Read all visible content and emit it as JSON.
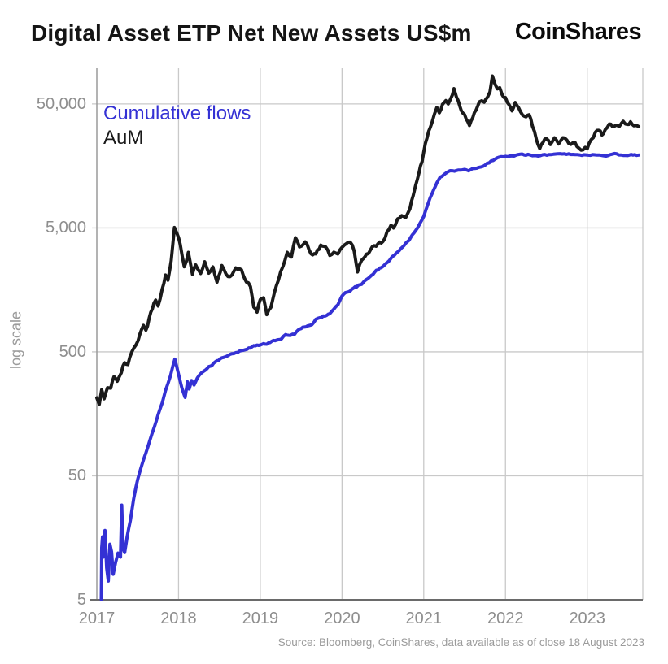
{
  "header": {
    "title": "Digital Asset ETP Net New Assets US$m",
    "brand": "CoinShares"
  },
  "legend": [
    {
      "label": "Cumulative flows",
      "color": "#3431d4"
    },
    {
      "label": "AuM",
      "color": "#1a1a1a"
    }
  ],
  "footer": {
    "source": "Source: Bloomberg, CoinShares, data available as of close 18 August 2023"
  },
  "chart_data": {
    "type": "line",
    "title": "Digital Asset ETP Net New Assets US$m",
    "xlabel": "",
    "ylabel": "log scale",
    "y_scale": "log",
    "grid": true,
    "legend_position": "top-left-inside",
    "xlim": [
      2017,
      2023.68
    ],
    "ylim": [
      5,
      97000
    ],
    "x_ticks": [
      {
        "value": 2017,
        "label": "2017"
      },
      {
        "value": 2018,
        "label": "2018"
      },
      {
        "value": 2019,
        "label": "2019"
      },
      {
        "value": 2020,
        "label": "2020"
      },
      {
        "value": 2021,
        "label": "2021"
      },
      {
        "value": 2022,
        "label": "2022"
      },
      {
        "value": 2023,
        "label": "2023"
      }
    ],
    "y_ticks": [
      {
        "value": 50000,
        "label": "50,000"
      },
      {
        "value": 5000,
        "label": "5,000"
      },
      {
        "value": 500,
        "label": "500"
      },
      {
        "value": 50,
        "label": "50"
      },
      {
        "value": 5,
        "label": "5"
      }
    ],
    "series": [
      {
        "name": "Cumulative flows",
        "color": "#3431d4",
        "points": [
          [
            2017.055,
            5
          ],
          [
            2017.06,
            13
          ],
          [
            2017.07,
            16
          ],
          [
            2017.08,
            11
          ],
          [
            2017.09,
            15
          ],
          [
            2017.1,
            18
          ],
          [
            2017.12,
            9
          ],
          [
            2017.14,
            7
          ],
          [
            2017.16,
            14
          ],
          [
            2017.18,
            12
          ],
          [
            2017.2,
            8
          ],
          [
            2017.23,
            10
          ],
          [
            2017.26,
            12
          ],
          [
            2017.29,
            11
          ],
          [
            2017.305,
            29
          ],
          [
            2017.32,
            13
          ],
          [
            2017.34,
            12
          ],
          [
            2017.37,
            16
          ],
          [
            2017.41,
            22
          ],
          [
            2017.45,
            33
          ],
          [
            2017.5,
            47
          ],
          [
            2017.55,
            60
          ],
          [
            2017.6,
            76
          ],
          [
            2017.65,
            98
          ],
          [
            2017.7,
            124
          ],
          [
            2017.75,
            155
          ],
          [
            2017.8,
            195
          ],
          [
            2017.84,
            245
          ],
          [
            2017.87,
            275
          ],
          [
            2017.9,
            320
          ],
          [
            2017.93,
            385
          ],
          [
            2017.955,
            440
          ],
          [
            2018.0,
            335
          ],
          [
            2018.04,
            255
          ],
          [
            2018.08,
            215
          ],
          [
            2018.11,
            285
          ],
          [
            2018.13,
            252
          ],
          [
            2018.16,
            298
          ],
          [
            2018.19,
            272
          ],
          [
            2018.23,
            312
          ],
          [
            2018.28,
            335
          ],
          [
            2018.33,
            362
          ],
          [
            2018.39,
            388
          ],
          [
            2018.45,
            415
          ],
          [
            2018.51,
            440
          ],
          [
            2018.57,
            462
          ],
          [
            2018.63,
            480
          ],
          [
            2018.7,
            498
          ],
          [
            2018.77,
            512
          ],
          [
            2018.84,
            528
          ],
          [
            2018.9,
            545
          ],
          [
            2018.96,
            562
          ],
          [
            2019.02,
            578
          ],
          [
            2019.08,
            588
          ],
          [
            2019.14,
            618
          ],
          [
            2019.2,
            626
          ],
          [
            2019.26,
            634
          ],
          [
            2019.31,
            682
          ],
          [
            2019.37,
            692
          ],
          [
            2019.42,
            705
          ],
          [
            2019.46,
            762
          ],
          [
            2019.52,
            788
          ],
          [
            2019.58,
            808
          ],
          [
            2019.63,
            828
          ],
          [
            2019.68,
            905
          ],
          [
            2019.73,
            952
          ],
          [
            2019.79,
            985
          ],
          [
            2019.85,
            1035
          ],
          [
            2019.9,
            1090
          ],
          [
            2019.95,
            1200
          ],
          [
            2020.0,
            1400
          ],
          [
            2020.06,
            1520
          ],
          [
            2020.12,
            1610
          ],
          [
            2020.18,
            1680
          ],
          [
            2020.24,
            1780
          ],
          [
            2020.3,
            1940
          ],
          [
            2020.36,
            2090
          ],
          [
            2020.42,
            2240
          ],
          [
            2020.48,
            2400
          ],
          [
            2020.54,
            2580
          ],
          [
            2020.6,
            2820
          ],
          [
            2020.66,
            3080
          ],
          [
            2020.72,
            3400
          ],
          [
            2020.78,
            3720
          ],
          [
            2020.84,
            4150
          ],
          [
            2020.9,
            4750
          ],
          [
            2020.95,
            5400
          ],
          [
            2021.0,
            6300
          ],
          [
            2021.04,
            7400
          ],
          [
            2021.08,
            8800
          ],
          [
            2021.12,
            10200
          ],
          [
            2021.16,
            11600
          ],
          [
            2021.2,
            12600
          ],
          [
            2021.25,
            13300
          ],
          [
            2021.3,
            13900
          ],
          [
            2021.35,
            14300
          ],
          [
            2021.4,
            14500
          ],
          [
            2021.45,
            14550
          ],
          [
            2021.5,
            14750
          ],
          [
            2021.55,
            14650
          ],
          [
            2021.6,
            15000
          ],
          [
            2021.65,
            15500
          ],
          [
            2021.7,
            15950
          ],
          [
            2021.75,
            16450
          ],
          [
            2021.8,
            17100
          ],
          [
            2021.85,
            17700
          ],
          [
            2021.9,
            18200
          ],
          [
            2021.95,
            18650
          ],
          [
            2022.0,
            18950
          ],
          [
            2022.08,
            19250
          ],
          [
            2022.16,
            19450
          ],
          [
            2022.25,
            19500
          ],
          [
            2022.33,
            19400
          ],
          [
            2022.4,
            19250
          ],
          [
            2022.48,
            19400
          ],
          [
            2022.56,
            19500
          ],
          [
            2022.64,
            19550
          ],
          [
            2022.72,
            19500
          ],
          [
            2022.8,
            19550
          ],
          [
            2022.88,
            19450
          ],
          [
            2022.96,
            19400
          ],
          [
            2023.04,
            19450
          ],
          [
            2023.12,
            19500
          ],
          [
            2023.2,
            19550
          ],
          [
            2023.28,
            19450
          ],
          [
            2023.36,
            19500
          ],
          [
            2023.44,
            19450
          ],
          [
            2023.52,
            19500
          ],
          [
            2023.58,
            19450
          ],
          [
            2023.63,
            19350
          ]
        ]
      },
      {
        "name": "AuM",
        "color": "#1a1a1a",
        "points": [
          [
            2017.0,
            210
          ],
          [
            2017.03,
            186
          ],
          [
            2017.06,
            238
          ],
          [
            2017.09,
            200
          ],
          [
            2017.13,
            252
          ],
          [
            2017.17,
            248
          ],
          [
            2017.21,
            310
          ],
          [
            2017.25,
            298
          ],
          [
            2017.3,
            358
          ],
          [
            2017.34,
            420
          ],
          [
            2017.38,
            392
          ],
          [
            2017.43,
            500
          ],
          [
            2017.48,
            580
          ],
          [
            2017.53,
            700
          ],
          [
            2017.57,
            820
          ],
          [
            2017.6,
            760
          ],
          [
            2017.64,
            930
          ],
          [
            2017.68,
            1100
          ],
          [
            2017.72,
            1310
          ],
          [
            2017.75,
            1210
          ],
          [
            2017.8,
            1620
          ],
          [
            2017.84,
            2100
          ],
          [
            2017.87,
            1900
          ],
          [
            2017.91,
            2700
          ],
          [
            2017.95,
            5000
          ],
          [
            2018.0,
            4100
          ],
          [
            2018.02,
            3530
          ],
          [
            2018.07,
            2460
          ],
          [
            2018.12,
            3160
          ],
          [
            2018.17,
            2200
          ],
          [
            2018.21,
            2530
          ],
          [
            2018.27,
            2070
          ],
          [
            2018.32,
            2700
          ],
          [
            2018.37,
            2240
          ],
          [
            2018.42,
            2400
          ],
          [
            2018.47,
            1810
          ],
          [
            2018.53,
            2400
          ],
          [
            2018.58,
            2100
          ],
          [
            2018.63,
            2000
          ],
          [
            2018.7,
            2280
          ],
          [
            2018.77,
            2240
          ],
          [
            2018.83,
            1870
          ],
          [
            2018.88,
            1720
          ],
          [
            2018.92,
            1210
          ],
          [
            2018.96,
            1080
          ],
          [
            2019.0,
            1350
          ],
          [
            2019.04,
            1430
          ],
          [
            2019.08,
            1000
          ],
          [
            2019.13,
            1180
          ],
          [
            2019.17,
            1500
          ],
          [
            2019.25,
            2200
          ],
          [
            2019.33,
            3100
          ],
          [
            2019.38,
            2900
          ],
          [
            2019.43,
            4150
          ],
          [
            2019.48,
            3450
          ],
          [
            2019.55,
            3750
          ],
          [
            2019.62,
            3200
          ],
          [
            2019.68,
            3050
          ],
          [
            2019.74,
            3550
          ],
          [
            2019.8,
            3300
          ],
          [
            2019.85,
            2950
          ],
          [
            2019.9,
            3200
          ],
          [
            2019.95,
            3050
          ],
          [
            2020.0,
            3500
          ],
          [
            2020.05,
            3750
          ],
          [
            2020.1,
            3950
          ],
          [
            2020.15,
            3300
          ],
          [
            2020.19,
            2250
          ],
          [
            2020.24,
            2750
          ],
          [
            2020.3,
            3050
          ],
          [
            2020.37,
            3400
          ],
          [
            2020.44,
            3700
          ],
          [
            2020.5,
            3900
          ],
          [
            2020.55,
            4600
          ],
          [
            2020.6,
            5400
          ],
          [
            2020.63,
            5100
          ],
          [
            2020.68,
            5900
          ],
          [
            2020.73,
            6300
          ],
          [
            2020.78,
            6100
          ],
          [
            2020.83,
            7400
          ],
          [
            2020.87,
            9000
          ],
          [
            2020.9,
            10800
          ],
          [
            2020.94,
            14000
          ],
          [
            2020.98,
            17500
          ],
          [
            2021.02,
            23000
          ],
          [
            2021.06,
            30000
          ],
          [
            2021.1,
            36000
          ],
          [
            2021.13,
            43000
          ],
          [
            2021.16,
            47000
          ],
          [
            2021.19,
            42000
          ],
          [
            2021.23,
            50000
          ],
          [
            2021.27,
            54000
          ],
          [
            2021.3,
            51000
          ],
          [
            2021.33,
            57000
          ],
          [
            2021.37,
            66000
          ],
          [
            2021.4,
            58000
          ],
          [
            2021.44,
            50000
          ],
          [
            2021.48,
            42000
          ],
          [
            2021.52,
            38000
          ],
          [
            2021.56,
            34500
          ],
          [
            2021.6,
            40000
          ],
          [
            2021.64,
            45000
          ],
          [
            2021.68,
            51000
          ],
          [
            2021.71,
            54000
          ],
          [
            2021.74,
            51500
          ],
          [
            2021.78,
            58000
          ],
          [
            2021.81,
            65000
          ],
          [
            2021.84,
            85000
          ],
          [
            2021.87,
            72000
          ],
          [
            2021.9,
            65000
          ],
          [
            2021.93,
            69000
          ],
          [
            2021.96,
            61000
          ],
          [
            2022.0,
            56000
          ],
          [
            2022.04,
            49000
          ],
          [
            2022.08,
            44500
          ],
          [
            2022.12,
            50000
          ],
          [
            2022.16,
            46500
          ],
          [
            2022.21,
            42500
          ],
          [
            2022.25,
            38500
          ],
          [
            2022.29,
            42000
          ],
          [
            2022.33,
            33500
          ],
          [
            2022.38,
            26000
          ],
          [
            2022.42,
            22500
          ],
          [
            2022.46,
            24500
          ],
          [
            2022.5,
            26000
          ],
          [
            2022.55,
            23000
          ],
          [
            2022.6,
            25500
          ],
          [
            2022.65,
            23500
          ],
          [
            2022.7,
            26500
          ],
          [
            2022.75,
            25000
          ],
          [
            2022.8,
            23800
          ],
          [
            2022.85,
            25500
          ],
          [
            2022.9,
            22300
          ],
          [
            2022.95,
            21000
          ],
          [
            2023.0,
            21800
          ],
          [
            2023.05,
            26500
          ],
          [
            2023.1,
            29500
          ],
          [
            2023.14,
            31500
          ],
          [
            2023.18,
            28800
          ],
          [
            2023.22,
            31800
          ],
          [
            2023.27,
            33800
          ],
          [
            2023.31,
            32000
          ],
          [
            2023.35,
            34200
          ],
          [
            2023.39,
            33200
          ],
          [
            2023.44,
            35800
          ],
          [
            2023.49,
            34500
          ],
          [
            2023.53,
            36200
          ],
          [
            2023.57,
            34800
          ],
          [
            2023.6,
            35500
          ],
          [
            2023.63,
            32800
          ]
        ]
      }
    ]
  }
}
